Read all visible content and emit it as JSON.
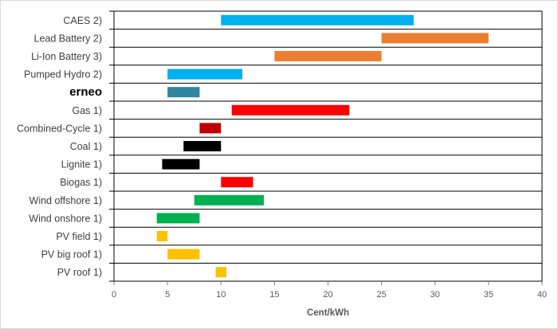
{
  "chart_data": {
    "type": "bar",
    "orientation": "horizontal-range",
    "title": "",
    "xlabel": "Cent/kWh",
    "ylabel": "",
    "xlim": [
      0,
      40
    ],
    "xticks": [
      0,
      5,
      10,
      15,
      20,
      25,
      30,
      35,
      40
    ],
    "grid": "horizontal row separators",
    "legend": "none",
    "categories": [
      "CAES 2)",
      "Lead Battery 2)",
      "Li-Ion Battery 3)",
      "Pumped Hydro 2)",
      "erneo",
      "Gas 1)",
      "Combined-Cycle 1)",
      "Coal 1)",
      "Lignite 1)",
      "Biogas 1)",
      "Wind offshore 1)",
      "Wind onshore 1)",
      "PV field 1)",
      "PV big roof 1)",
      "PV roof 1)"
    ],
    "ranges": [
      [
        10,
        28
      ],
      [
        25,
        35
      ],
      [
        15,
        25
      ],
      [
        5,
        12
      ],
      [
        5,
        8
      ],
      [
        11,
        22
      ],
      [
        8,
        10
      ],
      [
        6.5,
        10
      ],
      [
        4.5,
        8
      ],
      [
        10,
        13
      ],
      [
        7.5,
        14
      ],
      [
        4,
        8
      ],
      [
        4,
        5
      ],
      [
        5,
        8
      ],
      [
        9.5,
        10.5
      ]
    ],
    "colors": [
      "#00b0f0",
      "#ed7d31",
      "#ed7d31",
      "#00b0f0",
      "#31859c",
      "#ff0000",
      "#c00000",
      "#000000",
      "#000000",
      "#ff0000",
      "#00b050",
      "#00b050",
      "#ffc000",
      "#ffc000",
      "#ffc000"
    ],
    "highlighted_category": "erneo"
  }
}
